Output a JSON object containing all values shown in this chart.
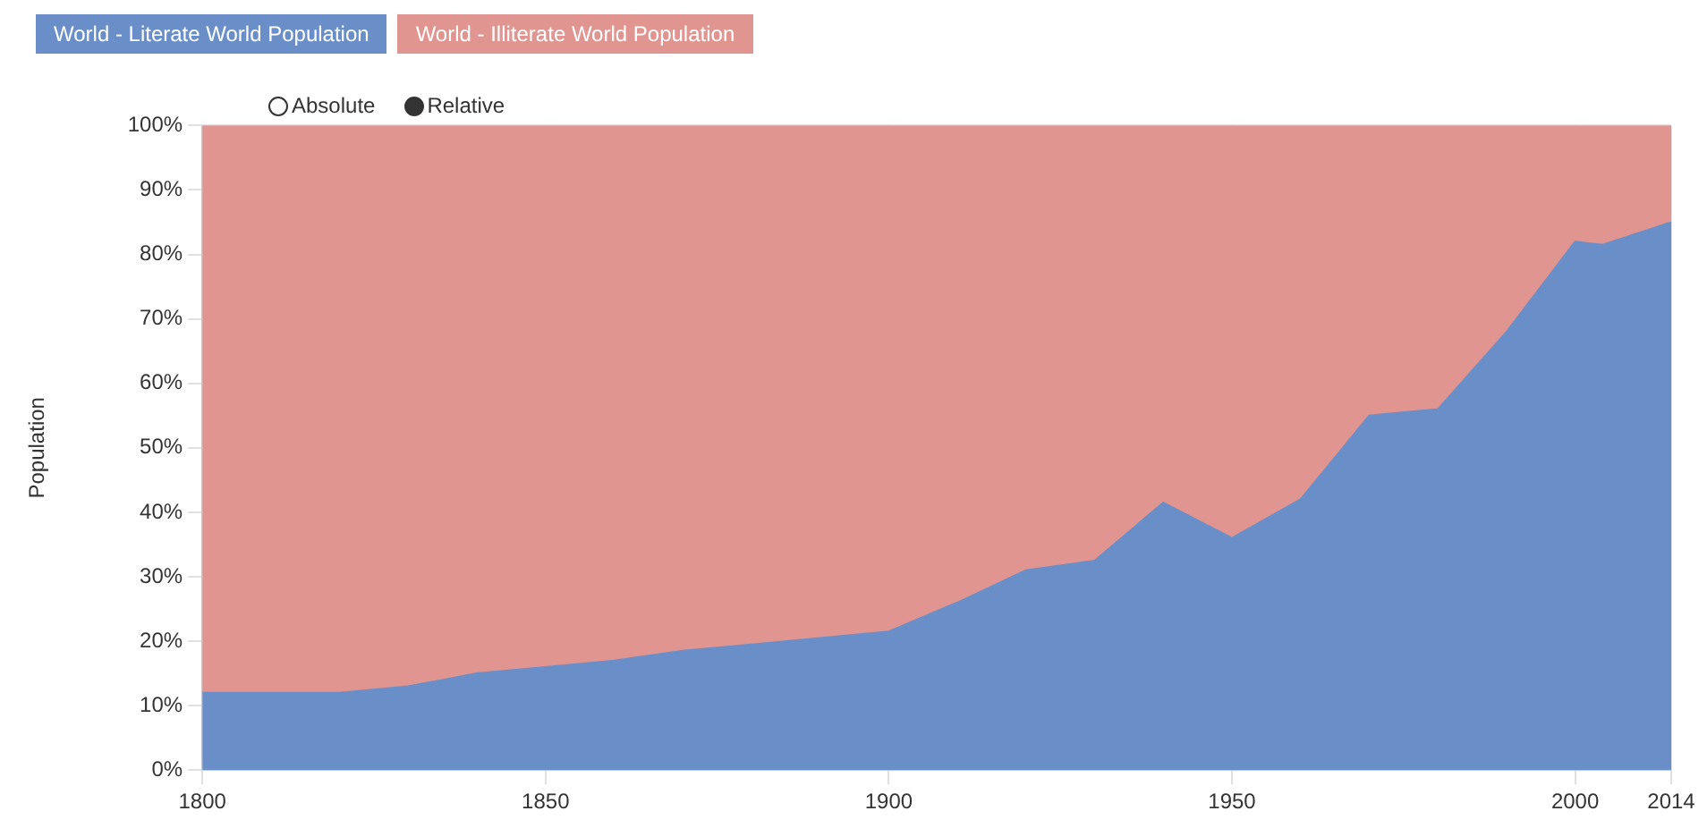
{
  "chart_data": {
    "type": "area",
    "stacked": true,
    "ylabel": "Population",
    "legend": "top left",
    "grid": true,
    "annotations": [
      "Absolute",
      "Relative"
    ],
    "x": [
      1800,
      1820,
      1830,
      1840,
      1850,
      1860,
      1870,
      1880,
      1890,
      1900,
      1910,
      1920,
      1930,
      1940,
      1950,
      1960,
      1970,
      1980,
      1990,
      2000,
      2004,
      2014
    ],
    "series": [
      {
        "name": "World - Literate World Population",
        "color": "#6a8fc8",
        "values": [
          12,
          12,
          13,
          15,
          16,
          17,
          18.5,
          19.5,
          20.5,
          21.5,
          26,
          31,
          32.5,
          41.5,
          36,
          42,
          55,
          56,
          68,
          82,
          81.5,
          85
        ]
      },
      {
        "name": "World - Illiterate World Population",
        "color": "#e09590",
        "values": [
          88,
          88,
          87,
          85,
          84,
          83,
          81.5,
          80.5,
          79.5,
          78.5,
          74,
          69,
          67.5,
          58.5,
          64,
          58,
          45,
          44,
          32,
          18,
          18.5,
          15
        ]
      }
    ],
    "xlim": [
      1800,
      2014
    ],
    "xticks": [
      1800,
      1850,
      1900,
      1950,
      2000,
      2014
    ],
    "ylim": [
      0,
      100
    ],
    "yticks": [
      {
        "value": 0,
        "label": "0%"
      },
      {
        "value": 10,
        "label": "10%"
      },
      {
        "value": 20,
        "label": "20%"
      },
      {
        "value": 30,
        "label": "30%"
      },
      {
        "value": 40,
        "label": "40%"
      },
      {
        "value": 50,
        "label": "50%"
      },
      {
        "value": 60,
        "label": "60%"
      },
      {
        "value": 70,
        "label": "70%"
      },
      {
        "value": 80,
        "label": "80%"
      },
      {
        "value": 90,
        "label": "90%"
      },
      {
        "value": 100,
        "label": "100%"
      }
    ]
  }
}
